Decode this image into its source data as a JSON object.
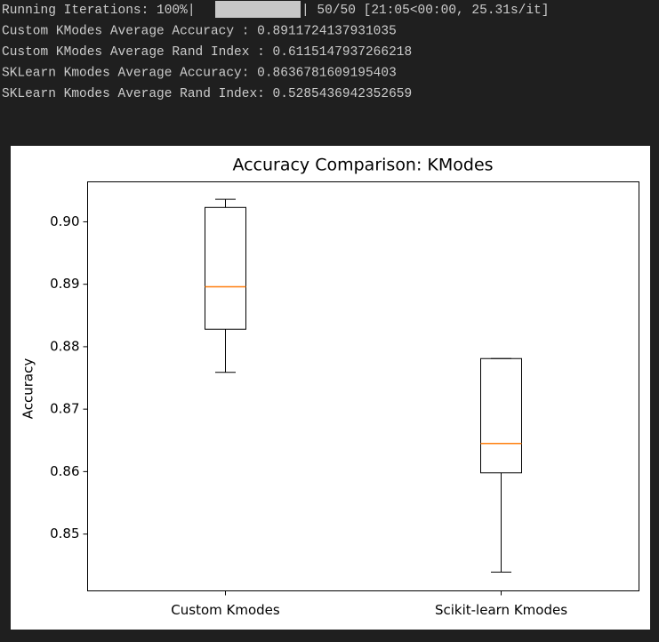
{
  "console": {
    "lines": [
      {
        "prefix": "Running Iterations: 100%|",
        "suffix": "| 50/50 [21:05<00:00, 25.31s/it]"
      },
      "Custom KModes Average Accuracy : 0.8911724137931035",
      "Custom KModes Average Rand Index : 0.6115147937266218",
      "SKLearn Kmodes Average Accuracy: 0.8636781609195403",
      "SKLearn Kmodes Average Rand Index: 0.5285436942352659"
    ]
  },
  "chart_data": {
    "type": "box",
    "title": "Accuracy Comparison: KModes",
    "y_label": "Accuracy",
    "categories": [
      "Custom Kmodes",
      "Scikit-learn Kmodes"
    ],
    "stats": [
      {
        "whislo": 0.8759,
        "q1": 0.8828,
        "med": 0.8896,
        "q3": 0.9023,
        "whishi": 0.9036
      },
      {
        "whislo": 0.8439,
        "q1": 0.8598,
        "med": 0.8645,
        "q3": 0.8781,
        "whishi": 0.8781
      }
    ],
    "box_color": "#000000",
    "median_color": "#ff7f0e",
    "ylim": [
      0.8409,
      0.9064
    ],
    "yticks": [
      0.85,
      0.86,
      0.87,
      0.88,
      0.89,
      {
        "value": 0.9,
        "label": "0.90"
      }
    ]
  }
}
